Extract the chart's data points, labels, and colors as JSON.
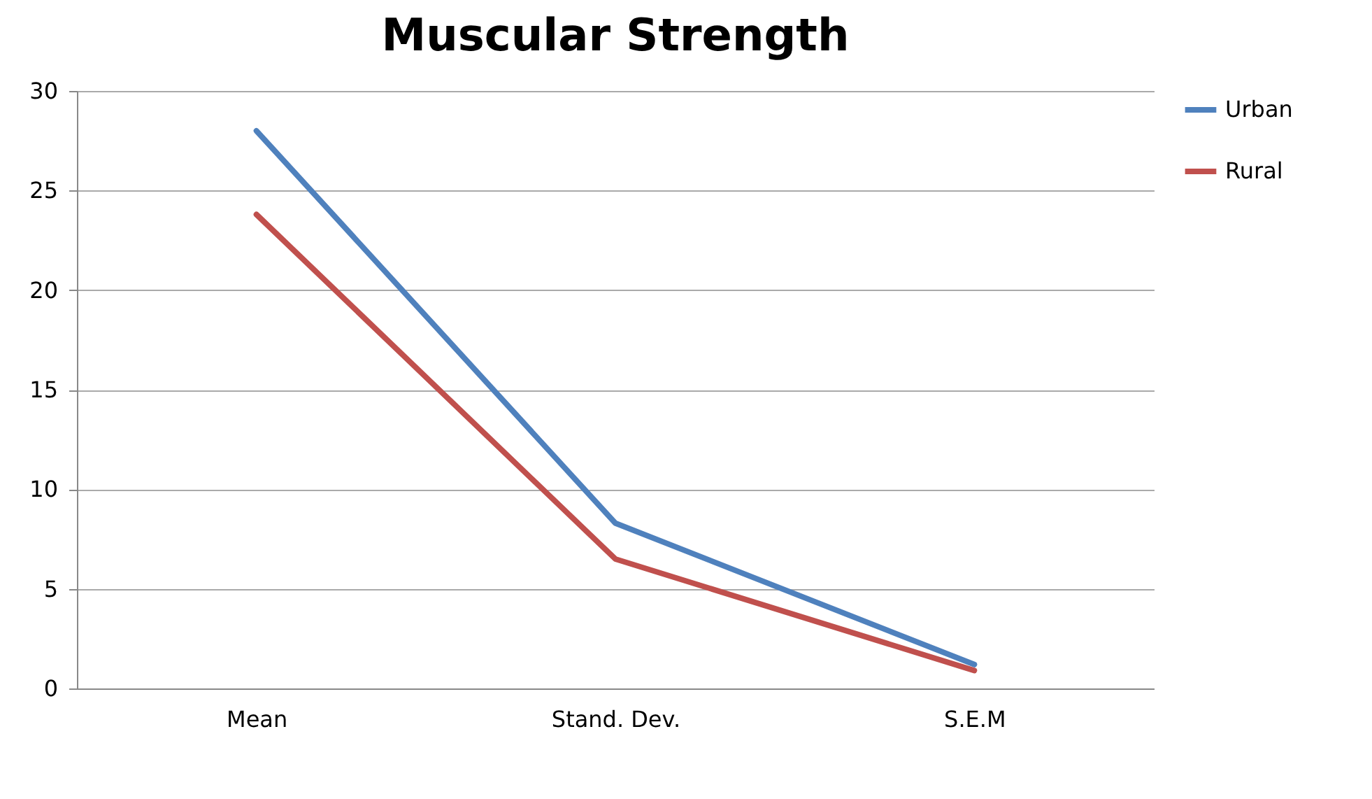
{
  "chart_data": {
    "type": "line",
    "title": "Muscular Strength",
    "categories": [
      "Mean",
      "Stand. Dev.",
      "S.E.M"
    ],
    "series": [
      {
        "name": "Urban",
        "color": "#4f81bd",
        "values": [
          28.0,
          8.3,
          1.2
        ]
      },
      {
        "name": "Rural",
        "color": "#c0504d",
        "values": [
          23.8,
          6.5,
          0.9
        ]
      }
    ],
    "ylim": [
      0,
      30
    ],
    "yticks": [
      0,
      5,
      10,
      15,
      20,
      25,
      30
    ],
    "grid": "y",
    "legend": "right",
    "marker": "none",
    "line_style": "solid"
  }
}
